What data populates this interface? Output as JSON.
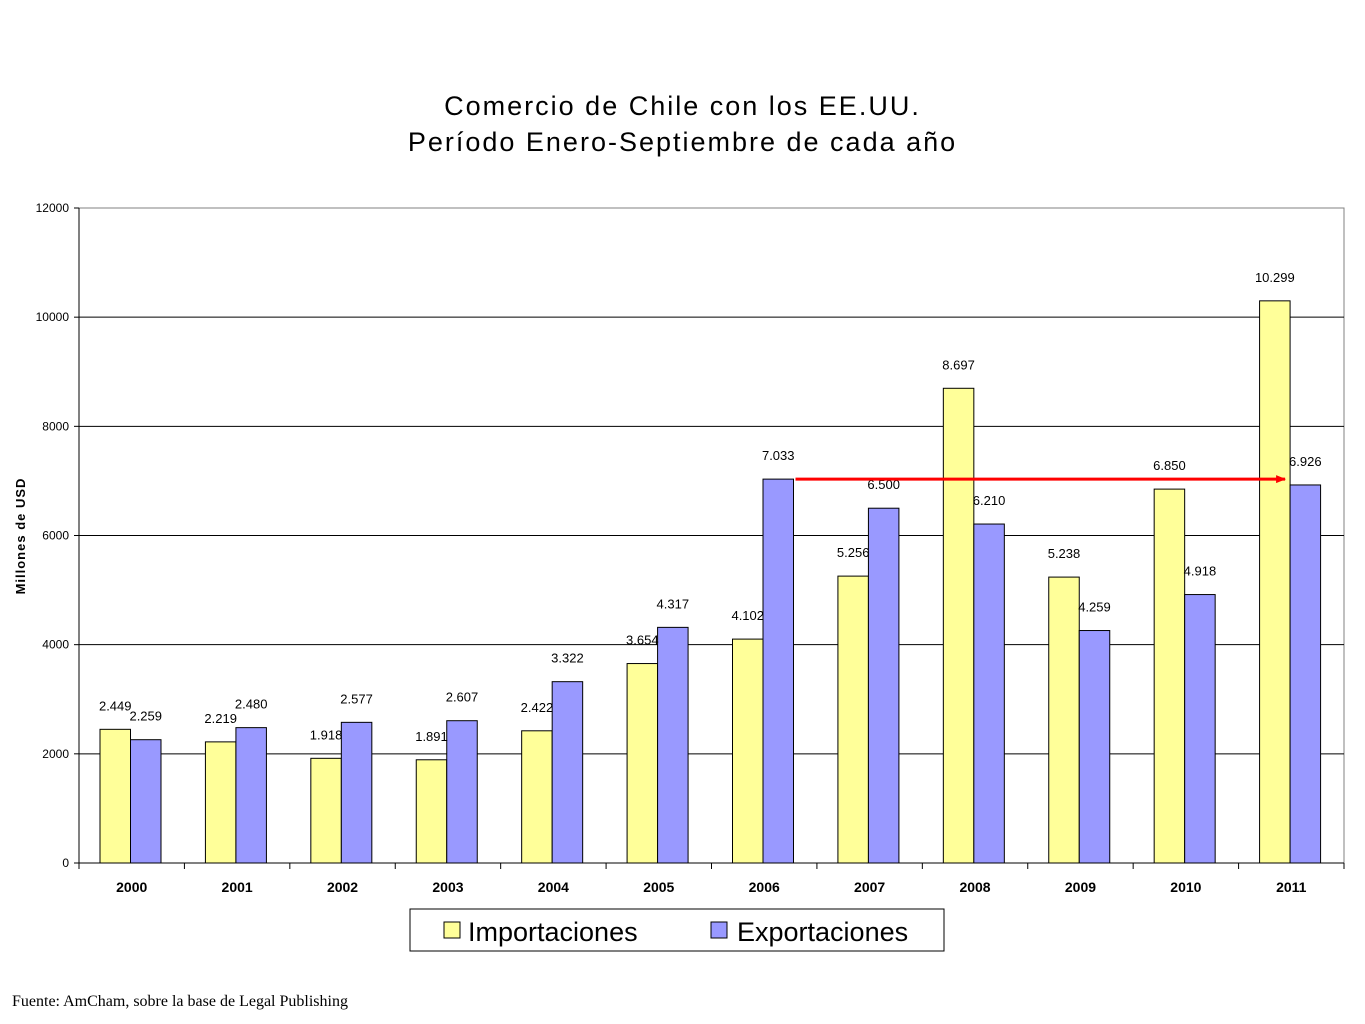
{
  "title_line1": "Comercio de Chile con los EE.UU.",
  "title_line2": "Período Enero-Septiembre de cada año",
  "source": "Fuente: AmCham, sobre la base de Legal Publishing",
  "chart_data": {
    "type": "bar",
    "title": "Comercio de Chile con los EE.UU. Período Enero-Septiembre de cada año",
    "xlabel": "",
    "ylabel": "Millones de USD",
    "ylim": [
      0,
      12000
    ],
    "yticks": [
      0,
      2000,
      4000,
      6000,
      8000,
      10000,
      12000
    ],
    "grid": true,
    "legend_position": "bottom",
    "categories": [
      "2000",
      "2001",
      "2002",
      "2003",
      "2004",
      "2005",
      "2006",
      "2007",
      "2008",
      "2009",
      "2010",
      "2011"
    ],
    "series": [
      {
        "name": "Importaciones",
        "color": "#ffff99",
        "values": [
          2449,
          2219,
          1918,
          1891,
          2422,
          3654,
          4102,
          5256,
          8697,
          5238,
          6850,
          10299
        ],
        "labels": [
          "2.449",
          "2.219",
          "1.918",
          "1.891",
          "2.422",
          "3.654",
          "4.102",
          "5.256",
          "8.697",
          "5.238",
          "6.850",
          "10.299"
        ]
      },
      {
        "name": "Exportaciones",
        "color": "#9999ff",
        "values": [
          2259,
          2480,
          2577,
          2607,
          3322,
          4317,
          7033,
          6500,
          6210,
          4259,
          4918,
          6926
        ],
        "labels": [
          "2.259",
          "2.480",
          "2.577",
          "2.607",
          "3.322",
          "4.317",
          "7.033",
          "6.500",
          "6.210",
          "4.259",
          "4.918",
          "6.926"
        ]
      }
    ],
    "annotations": [
      {
        "type": "arrow",
        "color": "#ff0000",
        "value": 7033,
        "from_category": "2006",
        "to_category": "2011"
      }
    ]
  }
}
